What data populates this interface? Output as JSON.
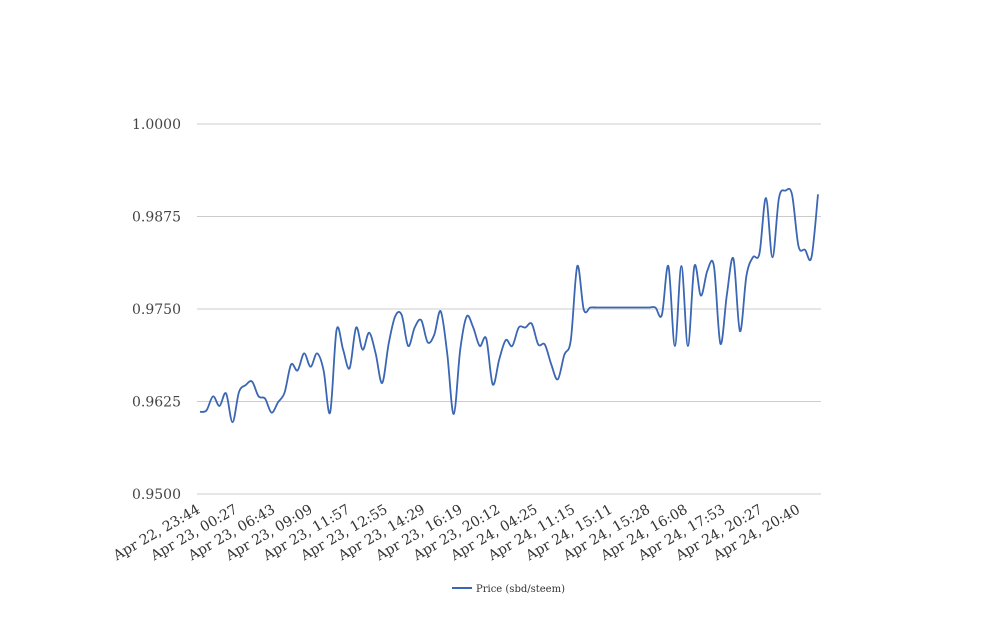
{
  "colors": {
    "series": "#3a66b3",
    "grid": "#cccccc",
    "axis_text": "#444444"
  },
  "chart_data": {
    "type": "line",
    "smooth": true,
    "grid": true,
    "legend": "bottom-center",
    "ylim": [
      0.95,
      1.0
    ],
    "y_ticks": [
      "1.0000",
      "0.9875",
      "0.9750",
      "0.9625",
      "0.9500"
    ],
    "y_tick_values": [
      1.0,
      0.9875,
      0.975,
      0.9625,
      0.95
    ],
    "x_tick_labels": [
      "Apr 22, 23:44",
      "Apr 23, 00:27",
      "Apr 23, 06:43",
      "Apr 23, 09:09",
      "Apr 23, 11:57",
      "Apr 23, 12:55",
      "Apr 23, 14:29",
      "Apr 23, 16:19",
      "Apr 23, 20:12",
      "Apr 24, 04:25",
      "Apr 24, 11:15",
      "Apr 24, 15:11",
      "Apr 24, 15:28",
      "Apr 24, 16:08",
      "Apr 24, 17:53",
      "Apr 24, 20:27",
      "Apr 24, 20:40"
    ],
    "series": [
      {
        "name": "Price (sbd/steem)",
        "values": [
          0.9611,
          0.9613,
          0.9632,
          0.9619,
          0.9636,
          0.9597,
          0.9638,
          0.9647,
          0.9652,
          0.9632,
          0.9629,
          0.961,
          0.9624,
          0.9637,
          0.9675,
          0.9667,
          0.969,
          0.9672,
          0.969,
          0.9667,
          0.961,
          0.9722,
          0.9695,
          0.967,
          0.9725,
          0.9695,
          0.9718,
          0.969,
          0.965,
          0.9703,
          0.974,
          0.9742,
          0.97,
          0.9725,
          0.9735,
          0.9705,
          0.9715,
          0.9747,
          0.969,
          0.9608,
          0.9695,
          0.974,
          0.9725,
          0.97,
          0.971,
          0.9648,
          0.9682,
          0.9708,
          0.97,
          0.9725,
          0.9725,
          0.973,
          0.9702,
          0.9702,
          0.9675,
          0.9655,
          0.9688,
          0.9708,
          0.9808,
          0.9749,
          0.9752,
          0.9752,
          0.9752,
          0.9752,
          0.9752,
          0.9752,
          0.9752,
          0.9752,
          0.9752,
          0.9752,
          0.9752,
          0.9742,
          0.9808,
          0.97,
          0.9808,
          0.97,
          0.9808,
          0.9768,
          0.9802,
          0.9808,
          0.9703,
          0.977,
          0.9818,
          0.972,
          0.9795,
          0.982,
          0.9825,
          0.99,
          0.982,
          0.99,
          0.991,
          0.9905,
          0.9835,
          0.983,
          0.982,
          0.9905
        ]
      }
    ]
  }
}
